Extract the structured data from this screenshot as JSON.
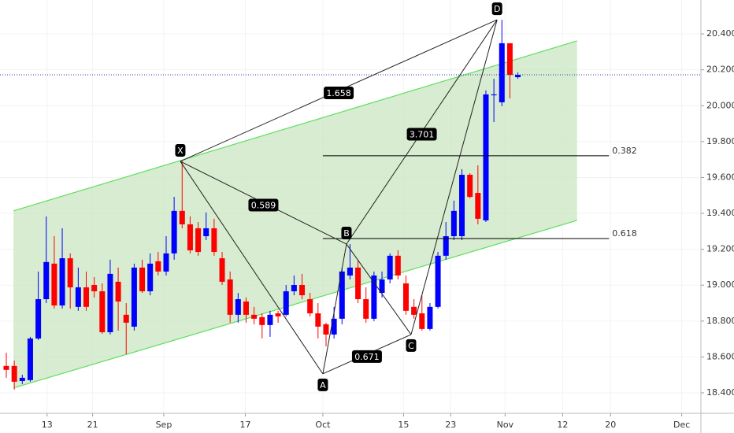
{
  "chart_data": {
    "type": "candlestick",
    "colors": {
      "up": "#0000ff",
      "down": "#ff0000",
      "channel_fill": "#c9e6c0",
      "channel_line": "#5ee05e",
      "pattern": "#222222"
    },
    "xlim": [
      -0.788,
      86.9
    ],
    "ylim": [
      18.286,
      20.589
    ],
    "xticks": [
      {
        "value": 5.1,
        "label": "13"
      },
      {
        "value": 10.8,
        "label": "21"
      },
      {
        "value": 19.7,
        "label": "Sep"
      },
      {
        "value": 29.9,
        "label": "17"
      },
      {
        "value": 39.6,
        "label": "Oct"
      },
      {
        "value": 49.7,
        "label": "15"
      },
      {
        "value": 55.6,
        "label": "23"
      },
      {
        "value": 62.4,
        "label": "Nov"
      },
      {
        "value": 69.6,
        "label": "12"
      },
      {
        "value": 75.6,
        "label": "20"
      },
      {
        "value": 84.5,
        "label": "Dec"
      }
    ],
    "yticks": [
      {
        "value": 18.4,
        "label": "18.40000"
      },
      {
        "value": 18.6,
        "label": "18.60000"
      },
      {
        "value": 18.8,
        "label": "18.80000"
      },
      {
        "value": 19.0,
        "label": "19.00000"
      },
      {
        "value": 19.2,
        "label": "19.20000"
      },
      {
        "value": 19.4,
        "label": "19.40000"
      },
      {
        "value": 19.6,
        "label": "19.60000"
      },
      {
        "value": 19.8,
        "label": "19.80000"
      },
      {
        "value": 20.0,
        "label": "20.00000"
      },
      {
        "value": 20.2,
        "label": "20.20000"
      },
      {
        "value": 20.4,
        "label": "20.40000"
      }
    ],
    "open": [
      18.55,
      18.55,
      18.466,
      18.471,
      18.703,
      18.922,
      19.12,
      18.887,
      19.15,
      18.879,
      18.988,
      19.001,
      18.966,
      18.738,
      19.019,
      18.835,
      18.769,
      19.098,
      18.966,
      19.133,
      19.076,
      19.177,
      19.414,
      19.339,
      19.317,
      19.273,
      19.317,
      19.15,
      19.032,
      18.835,
      18.909,
      18.835,
      18.822,
      18.778,
      18.843,
      18.835,
      18.966,
      19.001,
      18.922,
      18.843,
      18.782,
      18.725,
      18.813,
      19.054,
      19.098,
      18.922,
      18.813,
      18.957,
      19.032,
      19.164,
      19.01,
      18.879,
      18.843,
      18.756,
      18.879,
      19.164,
      19.273,
      19.273,
      19.615,
      19.514,
      19.361,
      20.058,
      20.019,
      20.348,
      20.159
    ],
    "high": [
      18.624,
      18.58,
      18.501,
      18.712,
      19.076,
      19.383,
      19.273,
      19.317,
      19.177,
      19.098,
      19.076,
      19.045,
      19.01,
      19.142,
      19.098,
      18.9,
      19.12,
      19.142,
      19.177,
      19.185,
      19.273,
      19.492,
      19.69,
      19.383,
      19.352,
      19.405,
      19.37,
      19.185,
      19.076,
      18.957,
      18.931,
      18.879,
      18.843,
      18.857,
      18.857,
      19.001,
      19.054,
      19.063,
      18.957,
      18.9,
      18.791,
      18.879,
      19.098,
      19.229,
      19.142,
      18.988,
      19.076,
      19.076,
      19.177,
      19.194,
      19.054,
      18.922,
      18.944,
      18.9,
      19.185,
      19.352,
      19.471,
      19.646,
      19.624,
      19.668,
      20.085,
      20.15,
      20.479,
      20.348,
      20.185
    ],
    "low": [
      18.484,
      18.418,
      18.449,
      18.462,
      18.694,
      18.9,
      18.87,
      18.87,
      18.87,
      18.857,
      18.857,
      18.931,
      18.729,
      18.725,
      18.747,
      18.615,
      18.747,
      18.957,
      18.944,
      19.054,
      19.054,
      19.142,
      19.317,
      19.177,
      19.164,
      19.251,
      19.164,
      19.001,
      18.791,
      18.791,
      18.791,
      18.782,
      18.703,
      18.712,
      18.791,
      18.826,
      18.944,
      18.922,
      18.826,
      18.703,
      18.659,
      18.703,
      18.782,
      19.032,
      18.9,
      18.791,
      18.8,
      18.931,
      19.01,
      19.032,
      18.835,
      18.813,
      18.747,
      18.747,
      18.87,
      19.142,
      19.251,
      19.251,
      19.484,
      19.339,
      19.352,
      19.909,
      19.997,
      20.041,
      20.15
    ],
    "close": [
      18.528,
      18.462,
      18.484,
      18.703,
      18.922,
      19.129,
      18.887,
      19.15,
      18.988,
      18.988,
      18.879,
      18.966,
      18.738,
      19.063,
      18.909,
      18.791,
      19.098,
      18.966,
      19.12,
      19.076,
      19.177,
      19.414,
      19.339,
      19.194,
      19.185,
      19.317,
      19.185,
      19.019,
      18.835,
      18.922,
      18.835,
      18.813,
      18.778,
      18.835,
      18.826,
      18.966,
      19.001,
      18.944,
      18.843,
      18.769,
      18.725,
      18.813,
      19.076,
      19.098,
      18.922,
      18.813,
      19.054,
      19.032,
      19.164,
      19.054,
      18.857,
      18.835,
      18.756,
      18.879,
      19.164,
      19.273,
      19.414,
      19.615,
      19.492,
      19.37,
      20.063,
      20.063,
      20.348,
      20.172,
      20.172
    ],
    "channel": {
      "upper": [
        [
          0.9,
          19.414
        ],
        [
          71.4,
          20.361
        ]
      ],
      "lower": [
        [
          0.9,
          18.427
        ],
        [
          71.4,
          19.361
        ]
      ]
    },
    "pattern": [
      {
        "label": "X",
        "x": 21.77,
        "y": 19.69
      },
      {
        "label": "A",
        "x": 39.6,
        "y": 18.506
      },
      {
        "label": "B",
        "x": 42.56,
        "y": 19.229
      },
      {
        "label": "C",
        "x": 50.64,
        "y": 18.725
      },
      {
        "label": "D",
        "x": 61.4,
        "y": 20.479
      }
    ],
    "ratios": [
      {
        "value": 1.658,
        "from": 0,
        "to": 4
      },
      {
        "value": 0.589,
        "from": 0,
        "to": 2
      },
      {
        "value": 0.671,
        "from": 1,
        "to": 3
      },
      {
        "value": 3.701,
        "from": 2,
        "to": 4
      }
    ],
    "levels": [
      {
        "value": 0.382,
        "price": 19.721,
        "x_range": [
          39.6,
          75.4
        ]
      },
      {
        "value": 0.618,
        "price": 19.26,
        "x_range": [
          39.6,
          75.4
        ]
      }
    ]
  }
}
